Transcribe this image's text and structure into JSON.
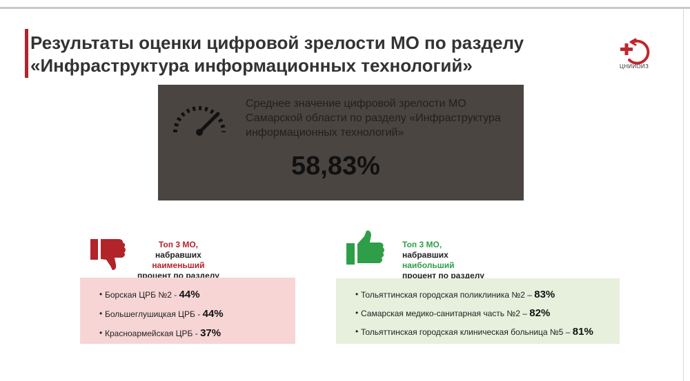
{
  "title": {
    "line1": "Результаты оценки цифровой зрелости МО по разделу",
    "line2": "«Инфраструктура информационных технологий»"
  },
  "logo": {
    "text": "ЦНИИОИЗ",
    "color": "#c0262d"
  },
  "average": {
    "lines": [
      "Среднее значение цифровой зрелости МО",
      "Самарской области по разделу «Инфраструктура",
      "информационных технологий»"
    ],
    "value": "58,83%",
    "icon": "speedometer-icon"
  },
  "lowest": {
    "icon": "thumbs-down-icon",
    "caption": {
      "prefix": "Топ 3 МО,",
      "rest1": " набравших",
      "highlight": "наименьший",
      "rest2": " процент по разделу"
    },
    "items": [
      {
        "name": "Борская ЦРБ №2 - ",
        "value": "44%"
      },
      {
        "name": "Большеглушицкая ЦРБ - ",
        "value": "44%"
      },
      {
        "name": "Красноармейская ЦРБ - ",
        "value": "37%"
      }
    ]
  },
  "highest": {
    "icon": "thumbs-up-icon",
    "caption": {
      "prefix": "Топ 3 МО,",
      "rest1": " набравших ",
      "highlight": "наибольший",
      "line2": "процент по разделу"
    },
    "items": [
      {
        "name": "Тольяттинская городская поликлиника №2 – ",
        "value": "83%"
      },
      {
        "name": "Самарская медико-санитарная часть №2 – ",
        "value": "82%"
      },
      {
        "name": "Тольяттинская городская клиническая больница №5 – ",
        "value": "81%"
      }
    ]
  },
  "colors": {
    "accent_red": "#b3232a",
    "accent_green": "#2f9e49",
    "panel": "#4b4541"
  }
}
